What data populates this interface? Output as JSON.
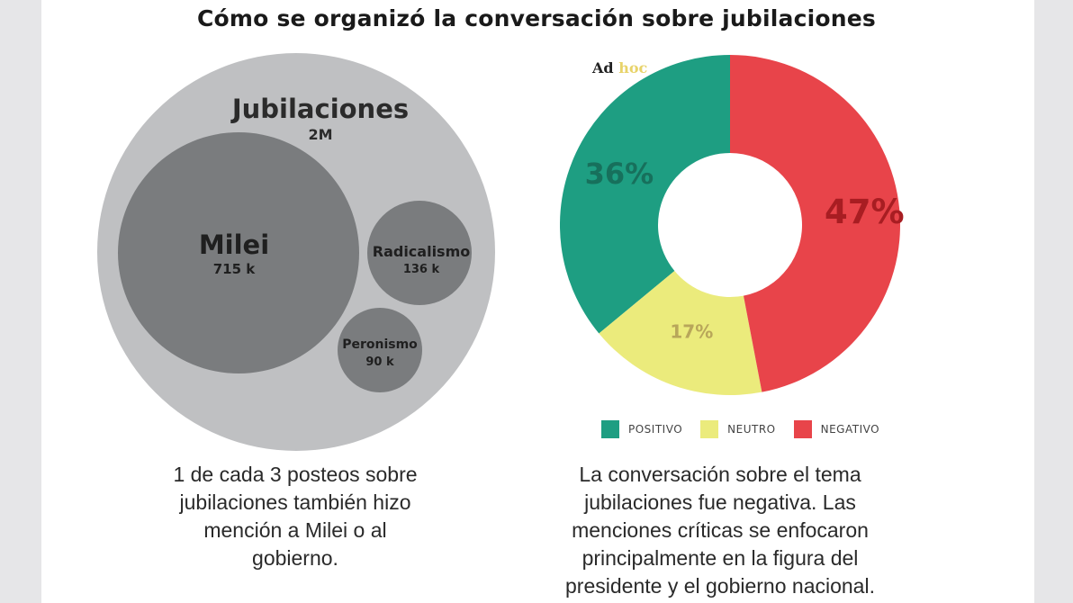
{
  "title": "Cómo se organizó la conversación sobre jubilaciones",
  "logo": {
    "part1": "Ad",
    "part2": "hoc"
  },
  "chart_data": [
    {
      "type": "bubble",
      "title": "",
      "root": {
        "name": "Jubilaciones",
        "value_label": "2M",
        "value": 2000000
      },
      "children": [
        {
          "name": "Milei",
          "value_label": "715 k",
          "value": 715000
        },
        {
          "name": "Radicalismo",
          "value_label": "136 k",
          "value": 136000
        },
        {
          "name": "Peronismo",
          "value_label": "90 k",
          "value": 90000
        }
      ]
    },
    {
      "type": "pie",
      "title": "",
      "series": [
        {
          "name": "POSITIVO",
          "value": 36,
          "label": "36%",
          "color": "#1e9e82"
        },
        {
          "name": "NEUTRO",
          "value": 17,
          "label": "17%",
          "color": "#ebeb7c"
        },
        {
          "name": "NEGATIVO",
          "value": 47,
          "label": "47%",
          "color": "#e8444a"
        }
      ]
    }
  ],
  "caption_left": [
    "1 de cada 3 posteos sobre",
    "jubilaciones también hizo",
    "mención a Milei o al",
    "gobierno."
  ],
  "caption_right": [
    "La conversación sobre el tema",
    "jubilaciones fue negativa. Las",
    "menciones críticas se enfocaron",
    "principalmente en la figura del",
    "presidente y el gobierno nacional."
  ],
  "colors": {
    "outer_bubble": "#bfc0c2",
    "inner_bubble": "#7a7c7e",
    "pos_text": "#17705c",
    "neu_text": "#b8a65a",
    "neg_text": "#a81d22"
  }
}
